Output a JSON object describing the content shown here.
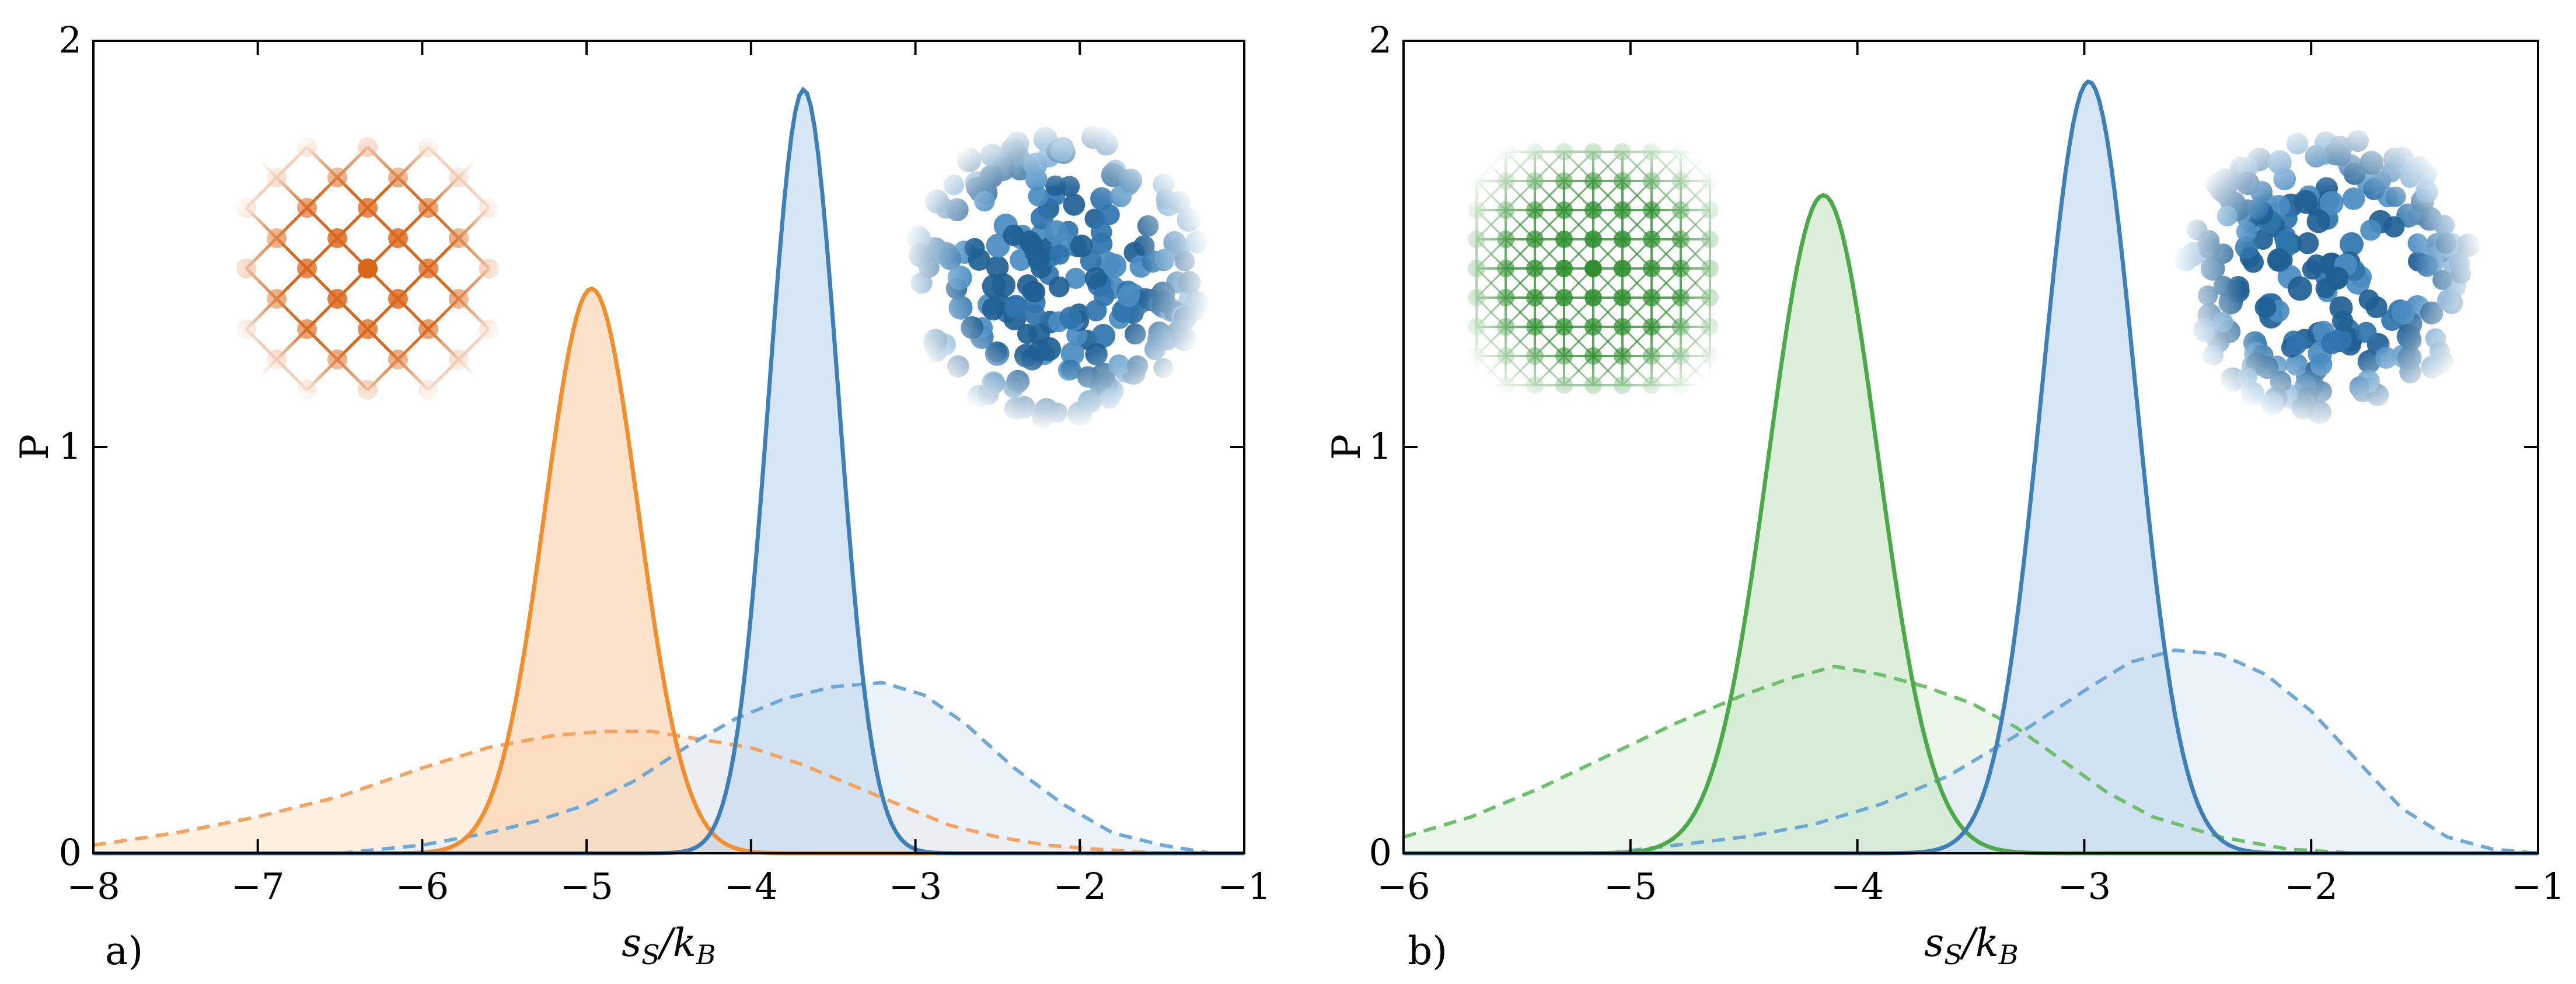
{
  "chart_data": [
    {
      "type": "area",
      "panel_label": "a)",
      "xlabel": "s_S/k_B",
      "ylabel": "P",
      "xlim": [
        -8,
        -1
      ],
      "ylim": [
        0,
        2
      ],
      "x_ticks": [
        "−8",
        "−7",
        "−6",
        "−5",
        "−4",
        "−3",
        "−2",
        "−1"
      ],
      "y_ticks": [
        "0",
        "1",
        "2"
      ],
      "series": [
        {
          "style": "solid",
          "color": "#f28e2b",
          "fill": "#fbd6b3",
          "curve": "gaussian",
          "mu": -4.97,
          "sigma": 0.285,
          "peak": 1.39
        },
        {
          "style": "solid",
          "color": "#3d7fb8",
          "fill": "#c6dbef",
          "curve": "gaussian",
          "mu": -3.68,
          "sigma": 0.21,
          "peak": 1.88
        },
        {
          "style": "dashed",
          "color": "#f4a460",
          "fill": "#fde9d7",
          "points": [
            [
              -8.0,
              0.02
            ],
            [
              -7.5,
              0.05
            ],
            [
              -7.0,
              0.09
            ],
            [
              -6.5,
              0.14
            ],
            [
              -6.0,
              0.21
            ],
            [
              -5.6,
              0.26
            ],
            [
              -5.2,
              0.29
            ],
            [
              -4.9,
              0.3
            ],
            [
              -4.6,
              0.3
            ],
            [
              -4.3,
              0.28
            ],
            [
              -4.0,
              0.26
            ],
            [
              -3.7,
              0.22
            ],
            [
              -3.4,
              0.17
            ],
            [
              -3.1,
              0.12
            ],
            [
              -2.8,
              0.07
            ],
            [
              -2.5,
              0.04
            ],
            [
              -2.2,
              0.02
            ],
            [
              -1.9,
              0.01
            ],
            [
              -1.5,
              0.0
            ]
          ]
        },
        {
          "style": "dashed",
          "color": "#6fa8d6",
          "fill": "#e4eef7",
          "points": [
            [
              -6.5,
              0.0
            ],
            [
              -6.0,
              0.02
            ],
            [
              -5.6,
              0.05
            ],
            [
              -5.3,
              0.08
            ],
            [
              -5.0,
              0.12
            ],
            [
              -4.7,
              0.18
            ],
            [
              -4.4,
              0.26
            ],
            [
              -4.1,
              0.33
            ],
            [
              -3.8,
              0.38
            ],
            [
              -3.5,
              0.41
            ],
            [
              -3.2,
              0.42
            ],
            [
              -2.95,
              0.39
            ],
            [
              -2.7,
              0.32
            ],
            [
              -2.4,
              0.21
            ],
            [
              -2.1,
              0.12
            ],
            [
              -1.8,
              0.05
            ],
            [
              -1.5,
              0.02
            ],
            [
              -1.2,
              0.0
            ]
          ]
        }
      ]
    },
    {
      "type": "area",
      "panel_label": "b)",
      "xlabel": "s_S/k_B",
      "ylabel": "P",
      "xlim": [
        -6,
        -1
      ],
      "ylim": [
        0,
        2
      ],
      "x_ticks": [
        "−6",
        "−5",
        "−4",
        "−3",
        "−2",
        "−1"
      ],
      "y_ticks": [
        "0",
        "1",
        "2"
      ],
      "series": [
        {
          "style": "solid",
          "color": "#4aaa4a",
          "fill": "#cfe8cc",
          "curve": "gaussian",
          "mu": -4.15,
          "sigma": 0.24,
          "peak": 1.62
        },
        {
          "style": "solid",
          "color": "#3d7fb8",
          "fill": "#c6dbef",
          "curve": "gaussian",
          "mu": -2.98,
          "sigma": 0.205,
          "peak": 1.9
        },
        {
          "style": "dashed",
          "color": "#6dbf6d",
          "fill": "#e6f3e3",
          "points": [
            [
              -6.0,
              0.04
            ],
            [
              -5.7,
              0.09
            ],
            [
              -5.4,
              0.16
            ],
            [
              -5.1,
              0.24
            ],
            [
              -4.8,
              0.32
            ],
            [
              -4.5,
              0.39
            ],
            [
              -4.3,
              0.43
            ],
            [
              -4.1,
              0.46
            ],
            [
              -3.9,
              0.44
            ],
            [
              -3.7,
              0.41
            ],
            [
              -3.5,
              0.37
            ],
            [
              -3.3,
              0.31
            ],
            [
              -3.1,
              0.23
            ],
            [
              -2.9,
              0.15
            ],
            [
              -2.7,
              0.09
            ],
            [
              -2.4,
              0.04
            ],
            [
              -2.1,
              0.01
            ],
            [
              -1.8,
              0.0
            ]
          ]
        },
        {
          "style": "dashed",
          "color": "#6fa8d6",
          "fill": "#e4eef7",
          "points": [
            [
              -5.1,
              0.0
            ],
            [
              -4.8,
              0.02
            ],
            [
              -4.5,
              0.04
            ],
            [
              -4.2,
              0.07
            ],
            [
              -3.9,
              0.12
            ],
            [
              -3.6,
              0.19
            ],
            [
              -3.3,
              0.29
            ],
            [
              -3.0,
              0.4
            ],
            [
              -2.8,
              0.47
            ],
            [
              -2.6,
              0.5
            ],
            [
              -2.4,
              0.49
            ],
            [
              -2.2,
              0.44
            ],
            [
              -2.0,
              0.35
            ],
            [
              -1.8,
              0.23
            ],
            [
              -1.6,
              0.11
            ],
            [
              -1.4,
              0.04
            ],
            [
              -1.2,
              0.01
            ],
            [
              -1.0,
              0.0
            ]
          ]
        }
      ]
    }
  ]
}
